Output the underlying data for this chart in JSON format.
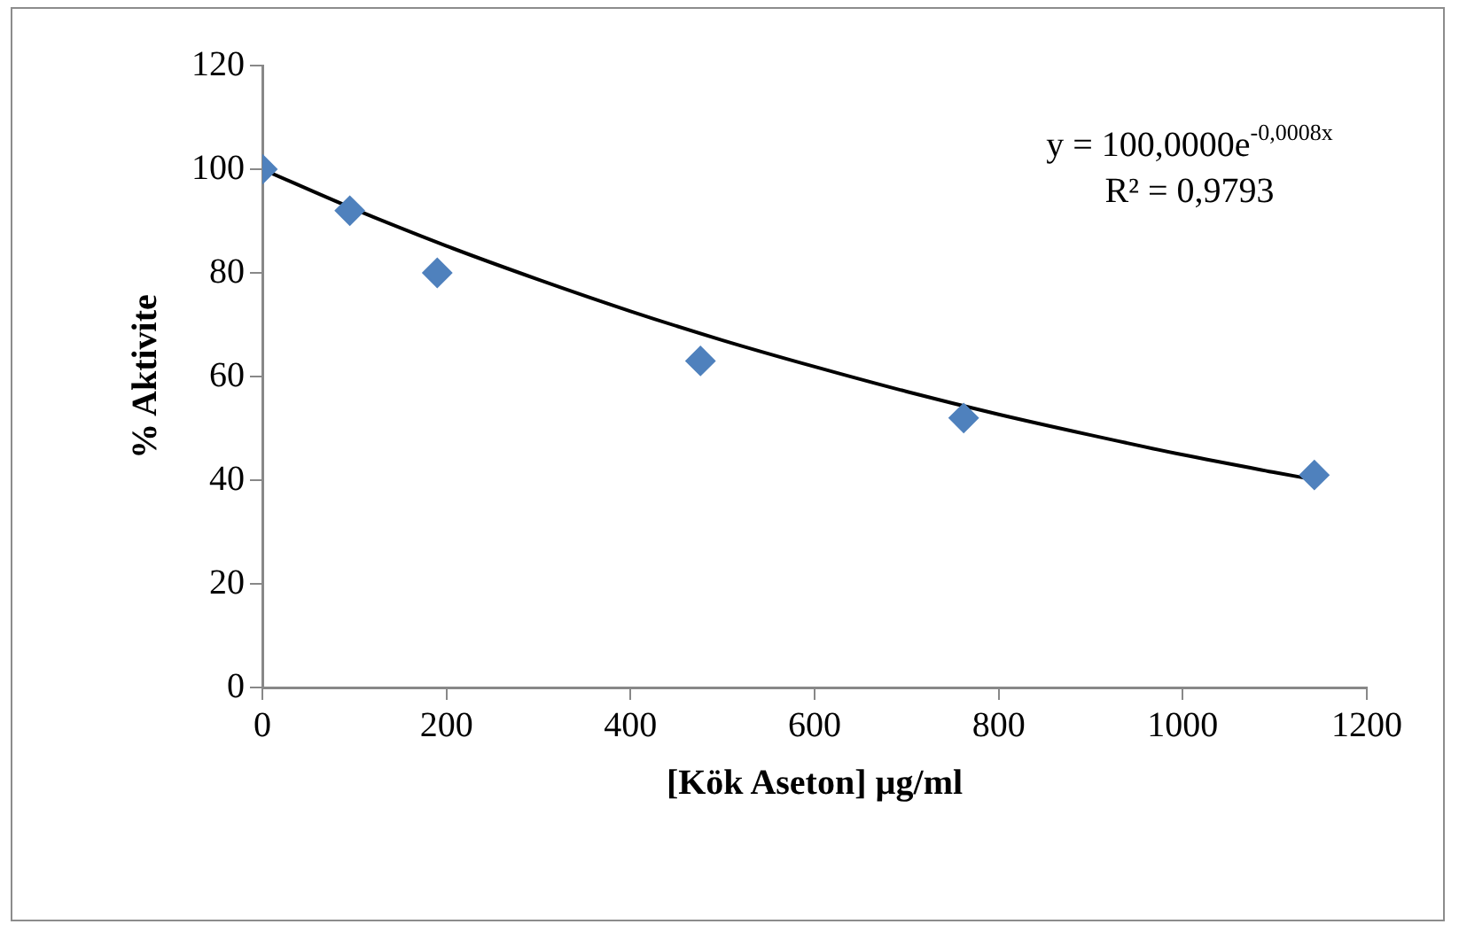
{
  "chart_data": {
    "type": "scatter",
    "xlabel": "[Kök Aseton] µg/ml",
    "ylabel": "% Aktivite",
    "x": [
      0,
      95,
      190,
      476,
      762,
      1143
    ],
    "series": [
      {
        "color": "#4f81bd",
        "marker": "diamond",
        "values": [
          100,
          92,
          80,
          63,
          52,
          41
        ]
      },
      {
        "type": "line",
        "color": "#000000",
        "marker": "none",
        "line_style": "solid",
        "x": [
          0,
          100,
          200,
          300,
          400,
          500,
          600,
          700,
          800,
          900,
          1000,
          1100,
          1143
        ],
        "values": [
          100,
          92.3,
          85.2,
          78.7,
          72.6,
          67.0,
          61.9,
          57.1,
          52.7,
          48.7,
          44.9,
          41.5,
          40.1
        ]
      }
    ],
    "annotations": [
      "y = 100,0000e$^{-0,0008x}$",
      "R² = 0,9793"
    ],
    "xlim": [
      0,
      1200
    ],
    "xticks": [
      0,
      200,
      400,
      600,
      800,
      1000,
      1200
    ],
    "ylim": [
      0,
      120
    ],
    "yticks": [
      0,
      20,
      40,
      60,
      80,
      100,
      120
    ],
    "grid": false,
    "legend": false
  }
}
